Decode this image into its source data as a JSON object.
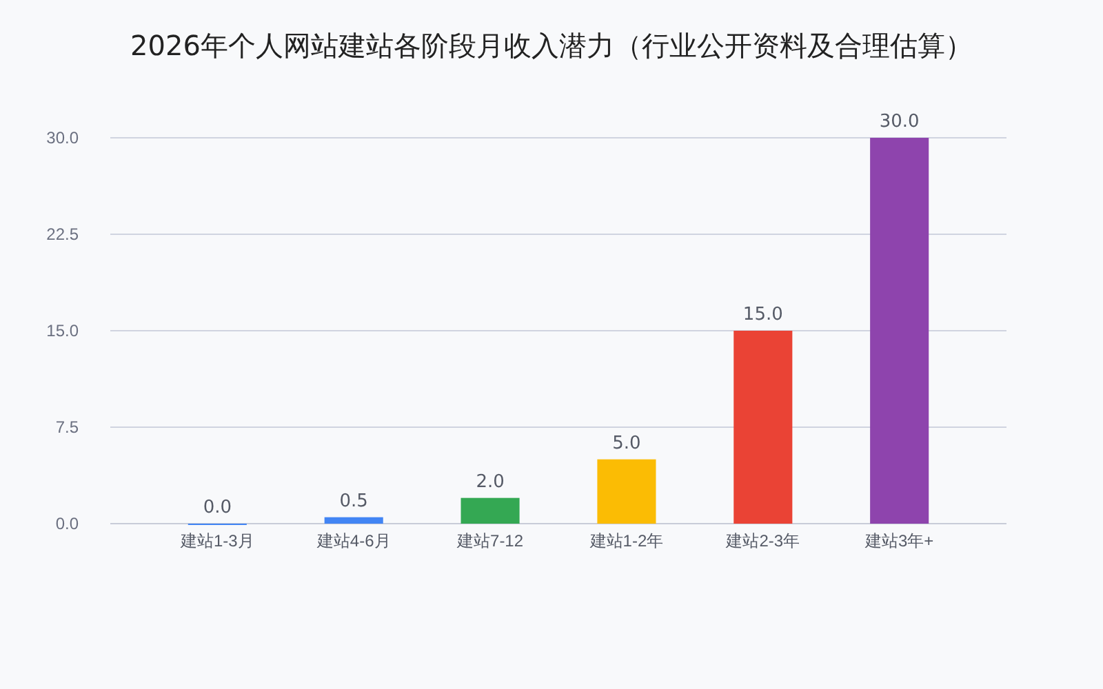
{
  "chart_data": {
    "type": "bar",
    "title": "2026年个人网站建站各阶段月收入潜力（行业公开资料及合理估算）",
    "categories": [
      "建站1-3月",
      "建站4-6月",
      "建站7-12",
      "建站1-2年",
      "建站2-3年",
      "建站3年+"
    ],
    "values": [
      0.0,
      0.5,
      2.0,
      5.0,
      15.0,
      30.0
    ],
    "colors": [
      "#4285f4",
      "#4285f4",
      "#34a853",
      "#fbbc04",
      "#ea4335",
      "#8e44ad"
    ],
    "value_labels": [
      "0.0",
      "0.5",
      "2.0",
      "5.0",
      "15.0",
      "30.0"
    ],
    "ylim": [
      0,
      30
    ],
    "yticks": [
      {
        "value": 0,
        "label": "0.0"
      },
      {
        "value": 7.5,
        "label": "7.5"
      },
      {
        "value": 15,
        "label": "15.0"
      },
      {
        "value": 22.5,
        "label": "22.5"
      },
      {
        "value": 30,
        "label": "30.0"
      }
    ],
    "grid": "y"
  }
}
